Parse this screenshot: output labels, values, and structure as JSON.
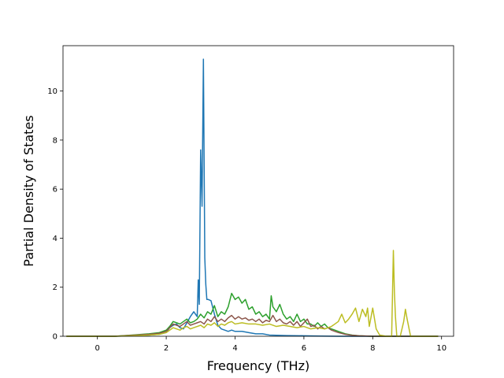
{
  "chart_data": {
    "type": "line",
    "title": "",
    "xlabel": "Frequency (THz)",
    "ylabel": "Partial Density of States",
    "xlim": [
      -1.0,
      10.35
    ],
    "ylim": [
      0,
      11.85
    ],
    "xticks": [
      0,
      2,
      4,
      6,
      8,
      10
    ],
    "yticks": [
      0,
      2,
      4,
      6,
      8,
      10
    ],
    "grid": false,
    "legend": "none",
    "series": [
      {
        "color": "#1f77b4",
        "x": [
          -0.9,
          0.5,
          1.0,
          1.5,
          1.8,
          2.0,
          2.1,
          2.2,
          2.3,
          2.4,
          2.5,
          2.6,
          2.7,
          2.8,
          2.9,
          2.93,
          2.96,
          3.0,
          3.04,
          3.08,
          3.12,
          3.15,
          3.18,
          3.22,
          3.3,
          3.4,
          3.5,
          3.6,
          3.7,
          3.8,
          3.9,
          4.0,
          4.2,
          4.4,
          4.6,
          4.8,
          5.0,
          5.2,
          5.5,
          6.0,
          6.5,
          7.0,
          8.0,
          9.0,
          9.9
        ],
        "y": [
          0,
          0,
          0.02,
          0.05,
          0.08,
          0.15,
          0.35,
          0.45,
          0.5,
          0.35,
          0.3,
          0.55,
          0.8,
          1.0,
          0.8,
          2.3,
          1.3,
          7.6,
          5.3,
          11.3,
          3.2,
          2.1,
          1.5,
          1.5,
          1.45,
          0.9,
          0.45,
          0.3,
          0.25,
          0.2,
          0.25,
          0.2,
          0.2,
          0.15,
          0.1,
          0.1,
          0.05,
          0.04,
          0.03,
          0.02,
          0.01,
          0,
          0,
          0,
          0
        ]
      },
      {
        "color": "#2ca02c",
        "x": [
          -0.9,
          0.5,
          1.0,
          1.5,
          1.8,
          2.0,
          2.1,
          2.2,
          2.3,
          2.4,
          2.5,
          2.6,
          2.7,
          2.8,
          2.9,
          3.0,
          3.1,
          3.2,
          3.3,
          3.4,
          3.5,
          3.6,
          3.7,
          3.8,
          3.9,
          4.0,
          4.1,
          4.2,
          4.3,
          4.4,
          4.5,
          4.6,
          4.7,
          4.8,
          4.9,
          5.0,
          5.05,
          5.1,
          5.2,
          5.3,
          5.4,
          5.5,
          5.6,
          5.7,
          5.8,
          5.9,
          6.0,
          6.1,
          6.2,
          6.3,
          6.4,
          6.5,
          6.6,
          6.7,
          6.8,
          6.9,
          7.0,
          7.2,
          7.4,
          7.6,
          7.8,
          8.0,
          8.2,
          9.9
        ],
        "y": [
          0,
          0,
          0.05,
          0.1,
          0.15,
          0.25,
          0.4,
          0.6,
          0.55,
          0.5,
          0.6,
          0.7,
          0.55,
          0.6,
          0.7,
          0.9,
          0.75,
          1.0,
          0.9,
          1.25,
          0.8,
          1.0,
          0.9,
          1.2,
          1.75,
          1.5,
          1.6,
          1.35,
          1.5,
          1.1,
          1.2,
          0.9,
          1.0,
          0.8,
          0.9,
          0.7,
          1.65,
          1.2,
          1.0,
          1.3,
          0.9,
          0.7,
          0.8,
          0.6,
          0.9,
          0.6,
          0.7,
          0.5,
          0.5,
          0.4,
          0.55,
          0.4,
          0.5,
          0.35,
          0.3,
          0.25,
          0.2,
          0.1,
          0.05,
          0.02,
          0.01,
          0,
          0,
          0
        ]
      },
      {
        "color": "#8c564b",
        "x": [
          -0.9,
          0.5,
          1.0,
          1.5,
          1.8,
          2.0,
          2.1,
          2.2,
          2.3,
          2.4,
          2.5,
          2.6,
          2.7,
          2.8,
          2.9,
          3.0,
          3.1,
          3.2,
          3.3,
          3.4,
          3.5,
          3.6,
          3.7,
          3.8,
          3.9,
          4.0,
          4.1,
          4.2,
          4.3,
          4.4,
          4.5,
          4.6,
          4.7,
          4.8,
          4.9,
          5.0,
          5.1,
          5.2,
          5.3,
          5.4,
          5.5,
          5.6,
          5.7,
          5.8,
          5.9,
          6.0,
          6.1,
          6.2,
          6.3,
          6.4,
          6.5,
          6.6,
          6.7,
          6.8,
          6.9,
          7.0,
          7.2,
          7.4,
          7.6,
          8.0,
          9.9
        ],
        "y": [
          0,
          0,
          0.04,
          0.08,
          0.12,
          0.2,
          0.35,
          0.5,
          0.45,
          0.4,
          0.5,
          0.6,
          0.45,
          0.5,
          0.55,
          0.6,
          0.5,
          0.7,
          0.6,
          0.8,
          0.6,
          0.7,
          0.6,
          0.75,
          0.85,
          0.7,
          0.8,
          0.7,
          0.75,
          0.65,
          0.7,
          0.6,
          0.7,
          0.55,
          0.65,
          0.6,
          0.85,
          0.6,
          0.7,
          0.55,
          0.5,
          0.6,
          0.45,
          0.6,
          0.4,
          0.55,
          0.7,
          0.4,
          0.45,
          0.3,
          0.4,
          0.3,
          0.35,
          0.25,
          0.2,
          0.15,
          0.08,
          0.04,
          0.02,
          0,
          0
        ]
      },
      {
        "color": "#bcbd22",
        "x": [
          -0.9,
          0.5,
          1.0,
          1.5,
          1.8,
          2.0,
          2.1,
          2.2,
          2.3,
          2.4,
          2.5,
          2.6,
          2.7,
          2.8,
          2.9,
          3.0,
          3.1,
          3.2,
          3.3,
          3.4,
          3.5,
          3.6,
          3.7,
          3.8,
          3.9,
          4.0,
          4.2,
          4.4,
          4.6,
          4.8,
          5.0,
          5.2,
          5.4,
          5.6,
          5.8,
          6.0,
          6.2,
          6.4,
          6.6,
          6.8,
          6.9,
          7.0,
          7.1,
          7.2,
          7.3,
          7.4,
          7.5,
          7.6,
          7.7,
          7.8,
          7.85,
          7.9,
          8.0,
          8.1,
          8.2,
          8.4,
          8.55,
          8.6,
          8.63,
          8.66,
          8.7,
          8.8,
          8.9,
          8.95,
          9.0,
          9.1,
          9.3,
          9.9
        ],
        "y": [
          0,
          0,
          0.02,
          0.05,
          0.08,
          0.15,
          0.25,
          0.35,
          0.3,
          0.25,
          0.35,
          0.4,
          0.3,
          0.35,
          0.4,
          0.45,
          0.35,
          0.5,
          0.45,
          0.55,
          0.4,
          0.5,
          0.45,
          0.55,
          0.6,
          0.5,
          0.55,
          0.5,
          0.5,
          0.45,
          0.5,
          0.4,
          0.45,
          0.4,
          0.35,
          0.4,
          0.3,
          0.35,
          0.3,
          0.4,
          0.5,
          0.6,
          0.9,
          0.55,
          0.7,
          0.9,
          1.15,
          0.6,
          1.1,
          0.8,
          1.15,
          0.4,
          1.15,
          0.3,
          0.05,
          0,
          0,
          3.5,
          1.8,
          0.8,
          0,
          0,
          0.6,
          1.1,
          0.7,
          0,
          0,
          0
        ]
      }
    ]
  }
}
